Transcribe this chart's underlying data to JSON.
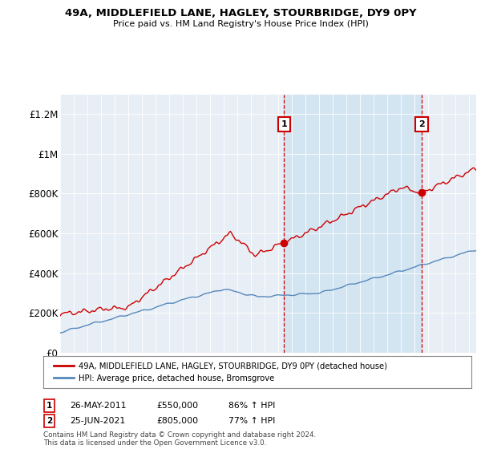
{
  "title": "49A, MIDDLEFIELD LANE, HAGLEY, STOURBRIDGE, DY9 0PY",
  "subtitle": "Price paid vs. HM Land Registry's House Price Index (HPI)",
  "ylim": [
    0,
    1300000
  ],
  "yticks": [
    0,
    200000,
    400000,
    600000,
    800000,
    1000000,
    1200000
  ],
  "ytick_labels": [
    "£0",
    "£200K",
    "£400K",
    "£600K",
    "£800K",
    "£1M",
    "£1.2M"
  ],
  "background_color": "#ffffff",
  "plot_bg_color": "#e8eef5",
  "red_line_color": "#cc0000",
  "blue_line_color": "#5588bb",
  "vline_color": "#cc0000",
  "shade_color": "#ddeeff",
  "sale1_date_x": 2011.42,
  "sale1_price": 550000,
  "sale1_label": "1",
  "sale2_date_x": 2021.5,
  "sale2_price": 805000,
  "sale2_label": "2",
  "label1_price": 1150000,
  "label2_price": 1150000,
  "legend_red": "49A, MIDDLEFIELD LANE, HAGLEY, STOURBRIDGE, DY9 0PY (detached house)",
  "legend_blue": "HPI: Average price, detached house, Bromsgrove",
  "note1_label": "1",
  "note1_date": "26-MAY-2011",
  "note1_price": "£550,000",
  "note1_hpi": "86% ↑ HPI",
  "note2_label": "2",
  "note2_date": "25-JUN-2021",
  "note2_price": "£805,000",
  "note2_hpi": "77% ↑ HPI",
  "footer": "Contains HM Land Registry data © Crown copyright and database right 2024.\nThis data is licensed under the Open Government Licence v3.0.",
  "xmin": 1995,
  "xmax": 2025.5
}
